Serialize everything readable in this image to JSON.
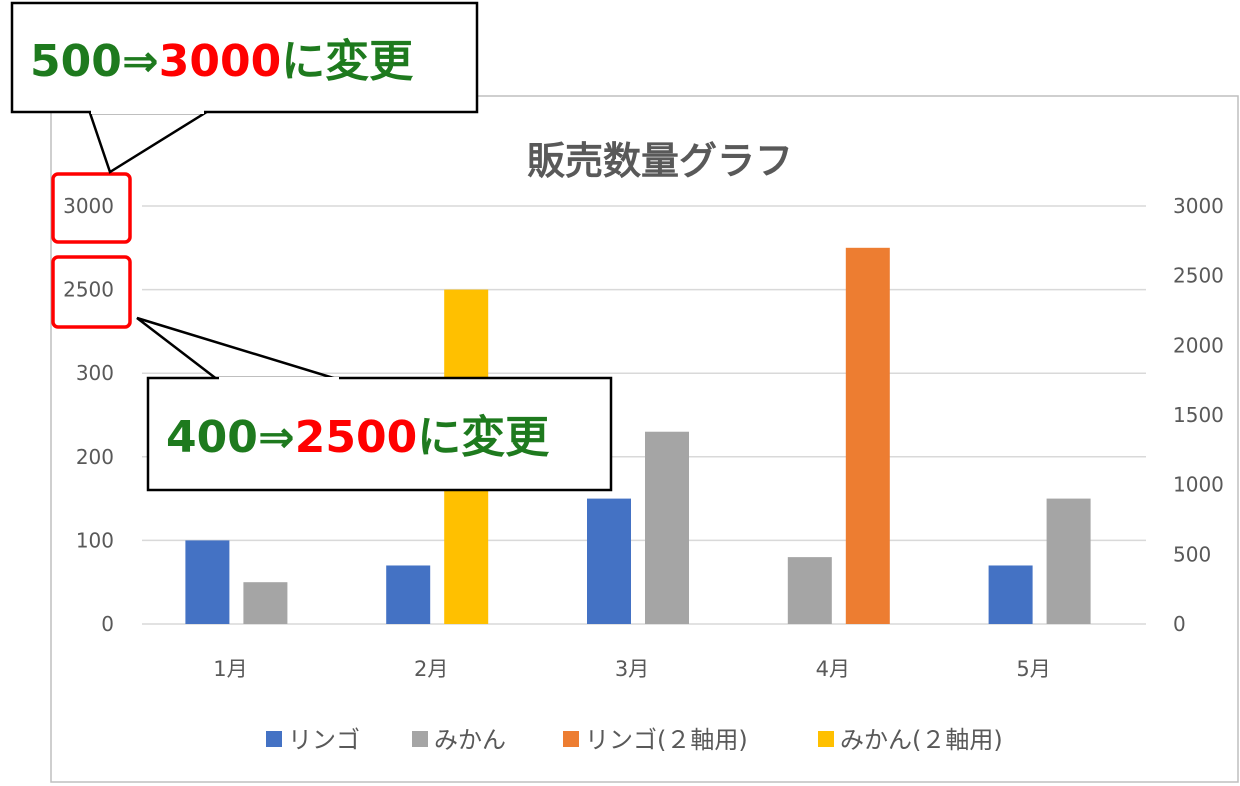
{
  "chart_data": {
    "type": "bar",
    "title": "販売数量グラフ",
    "categories": [
      "1月",
      "2月",
      "3月",
      "4月",
      "5月"
    ],
    "primary_axis": {
      "ticks": [
        "0",
        "100",
        "200",
        "300",
        "2500",
        "3000"
      ]
    },
    "secondary_axis": {
      "min": 0,
      "max": 3000,
      "ticks": [
        "0",
        "500",
        "1000",
        "1500",
        "2000",
        "2500",
        "3000"
      ]
    },
    "series": [
      {
        "name": "リンゴ",
        "axis": "primary",
        "color": "#4472C4",
        "values": [
          100,
          70,
          150,
          null,
          70
        ]
      },
      {
        "name": "みかん",
        "axis": "primary",
        "color": "#A5A5A5",
        "values": [
          50,
          null,
          230,
          80,
          150
        ]
      },
      {
        "name": "リンゴ(２軸用)",
        "axis": "secondary",
        "color": "#ED7D31",
        "values": [
          null,
          null,
          null,
          2700,
          null
        ]
      },
      {
        "name": "みかん(２軸用)",
        "axis": "secondary",
        "color": "#FFC000",
        "values": [
          null,
          2400,
          null,
          null,
          null
        ]
      }
    ],
    "legend_position": "bottom",
    "grid": true
  },
  "annotations": [
    {
      "before": "500⇒",
      "highlight": "3000",
      "after": "に変更"
    },
    {
      "before": "400⇒",
      "highlight": "2500",
      "after": "に変更"
    }
  ],
  "colors": {
    "annotation_green": "#1E7A1E",
    "annotation_red": "#FF0000",
    "highlight_box": "#FF0000"
  }
}
